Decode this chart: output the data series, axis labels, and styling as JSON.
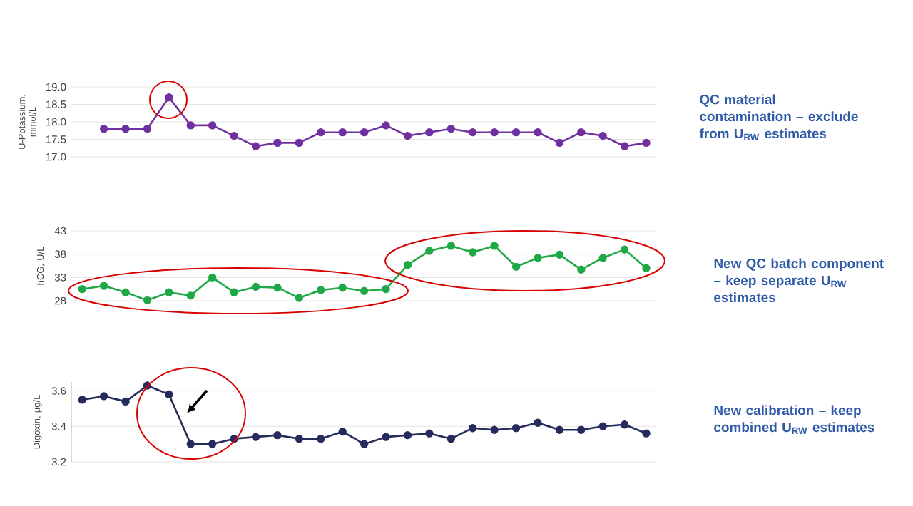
{
  "chart_data": [
    {
      "type": "line",
      "ylabel": "U-Potassium, mmol/L",
      "categories": [
        null,
        null,
        null,
        null,
        null,
        null,
        null,
        null,
        null,
        null,
        null,
        null,
        null,
        null,
        null,
        null,
        null,
        null,
        null,
        null,
        null,
        null,
        null,
        null,
        null,
        null
      ],
      "values": [
        17.8,
        17.8,
        17.8,
        18.7,
        17.9,
        17.9,
        17.6,
        17.3,
        17.4,
        17.4,
        17.7,
        17.7,
        17.7,
        17.9,
        17.6,
        17.7,
        17.8,
        17.7,
        17.7,
        17.7,
        17.7,
        17.4,
        17.7,
        17.6,
        17.3,
        17.4
      ],
      "color": "#7030a0",
      "ylim": [
        17.0,
        19.0
      ],
      "yticks": [
        {
          "value": 17.0,
          "label": "17.0"
        },
        {
          "value": 17.5,
          "label": "17.5"
        },
        {
          "value": 18.0,
          "label": "18.0"
        },
        {
          "value": 18.5,
          "label": "18.5"
        },
        {
          "value": 19.0,
          "label": "19.0"
        }
      ],
      "grid": "y",
      "marker": "circle",
      "tick_labels": "y",
      "annotations": [
        "QC material contamination – exclude from U$_{RW}$ estimates"
      ]
    },
    {
      "type": "line",
      "ylabel": "hCG, U/L",
      "categories": [
        null,
        null,
        null,
        null,
        null,
        null,
        null,
        null,
        null,
        null,
        null,
        null,
        null,
        null,
        null,
        null,
        null,
        null,
        null,
        null,
        null,
        null,
        null,
        null,
        null,
        null,
        null
      ],
      "values": [
        30.5,
        31.2,
        29.8,
        28.1,
        29.8,
        29.1,
        33.0,
        29.8,
        31.0,
        30.8,
        28.6,
        30.3,
        30.8,
        30.1,
        30.5,
        35.7,
        38.7,
        39.8,
        38.4,
        39.8,
        35.3,
        37.2,
        37.9,
        34.7,
        37.2,
        39.0,
        35.0
      ],
      "color": "#1fa846",
      "ylim": [
        28,
        43
      ],
      "yticks": [
        28,
        33,
        38,
        43
      ],
      "grid": "y",
      "marker": "circle",
      "tick_labels": "y",
      "annotations": [
        "New QC batch component – keep separate U$_{RW}$ estimates"
      ]
    },
    {
      "type": "line",
      "ylabel": "Digoxin, µg/L",
      "categories": [
        null,
        null,
        null,
        null,
        null,
        null,
        null,
        null,
        null,
        null,
        null,
        null,
        null,
        null,
        null,
        null,
        null,
        null,
        null,
        null,
        null,
        null,
        null,
        null,
        null,
        null,
        null
      ],
      "values": [
        3.55,
        3.57,
        3.54,
        3.63,
        3.58,
        3.3,
        3.3,
        3.33,
        3.34,
        3.35,
        3.33,
        3.33,
        3.37,
        3.3,
        3.34,
        3.35,
        3.36,
        3.33,
        3.39,
        3.38,
        3.39,
        3.42,
        3.38,
        3.38,
        3.4,
        3.41,
        3.36
      ],
      "color": "#262b5e",
      "ylim": [
        3.2,
        3.65
      ],
      "yticks": [
        3.2,
        3.4,
        3.6
      ],
      "grid": "y",
      "marker": "circle",
      "tick_labels": "y",
      "annotations": [
        "New calibration – keep combined U$_{RW}$ estimates"
      ]
    }
  ]
}
